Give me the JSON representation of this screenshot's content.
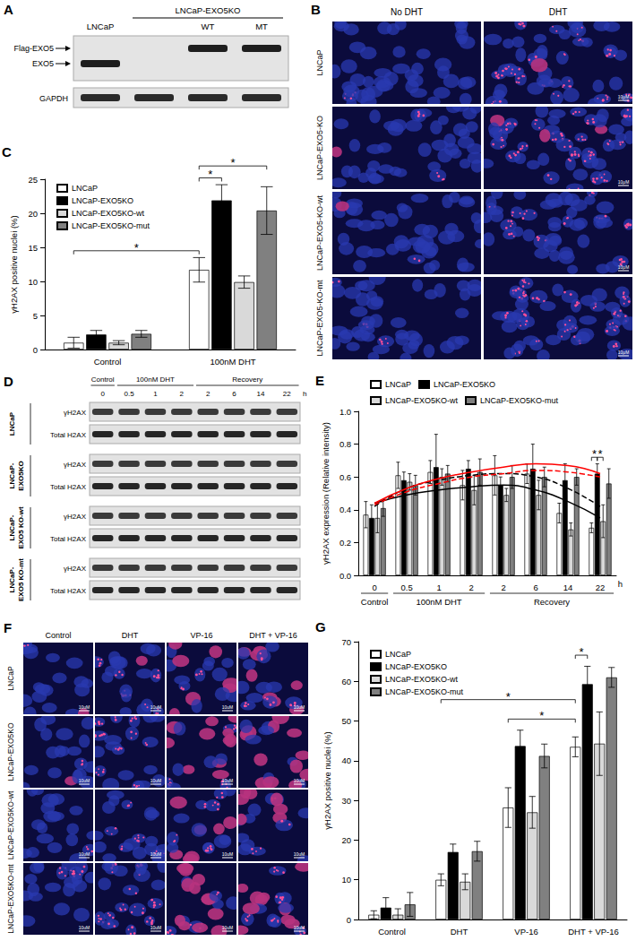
{
  "panels": {
    "A": {
      "label": "A",
      "lanes": [
        "LNCaP",
        null,
        "WT",
        "MT"
      ],
      "group": "LNCaP-EXO5KO",
      "bands": [
        {
          "label": "Flag-EXO5",
          "present": [
            false,
            false,
            true,
            true
          ]
        },
        {
          "label": "EXO5",
          "present": [
            true,
            false,
            false,
            false
          ]
        }
      ],
      "loading_control": "GAPDH"
    },
    "B": {
      "label": "B",
      "columns": [
        "No DHT",
        "DHT"
      ],
      "rows": [
        "LNCaP",
        "LNCaP-EXO5-KO",
        "LNCaP-EXO5-KO-wt",
        "LNCaP-EXO5-KO-mt"
      ],
      "scale_bar": "10μM"
    },
    "D": {
      "label": "D",
      "groups": [
        {
          "label": "Control",
          "times": [
            "0"
          ]
        },
        {
          "label": "100nM DHT",
          "times": [
            "0.5",
            "1",
            "2"
          ]
        },
        {
          "label": "Recovery",
          "times": [
            "2",
            "6",
            "14",
            "22"
          ]
        }
      ],
      "time_unit": "h",
      "cell_lines": [
        "LNCaP",
        "LNCaP-EXO5KO",
        "LNCaP-EXO5 KO-wt",
        "LNCaP-EXO5 KO-mt"
      ],
      "bands": [
        "γH2AX",
        "Total H2AX"
      ]
    },
    "F": {
      "label": "F",
      "columns": [
        "Control",
        "DHT",
        "VP-16",
        "DHT + VP-16"
      ],
      "rows": [
        "LNCaP",
        "LNCaP-EXO5KO",
        "LNCaP-EXO5KO-wt",
        "LNCaP-EXO5KO-mt"
      ],
      "scale_bar": "10uM"
    }
  },
  "chart_data": [
    {
      "panel": "C",
      "type": "bar",
      "y_label": "γH2AX positive nuclei (%)",
      "categories": [
        "Control",
        "100nM DHT"
      ],
      "series": [
        {
          "name": "LNCaP",
          "color": "#ffffff",
          "values": [
            1.0,
            11.7
          ],
          "errors": [
            0.8,
            1.8
          ]
        },
        {
          "name": "LNCaP-EXO5KO",
          "color": "#000000",
          "values": [
            2.2,
            21.9
          ],
          "errors": [
            0.6,
            2.3
          ]
        },
        {
          "name": "LNCaP-EXO5KO-wt",
          "color": "#d9d9d9",
          "values": [
            1.0,
            9.9
          ],
          "errors": [
            0.3,
            0.9
          ]
        },
        {
          "name": "LNCaP-EXO5KO-mut",
          "color": "#808080",
          "values": [
            2.3,
            20.4
          ],
          "errors": [
            0.5,
            3.5
          ]
        }
      ],
      "ylim": [
        0,
        25
      ],
      "yticks": [
        0,
        5,
        10,
        15,
        20,
        25
      ],
      "grid": false,
      "legend": "upper left",
      "annotations": [
        {
          "label": "*",
          "from": {
            "series": "LNCaP",
            "category": "Control"
          },
          "to": {
            "series": "LNCaP",
            "category": "100nM DHT"
          }
        },
        {
          "label": "*",
          "from": {
            "series": "LNCaP",
            "category": "100nM DHT"
          },
          "to": {
            "series": "LNCaP-EXO5KO",
            "category": "100nM DHT"
          }
        },
        {
          "label": "*",
          "from": {
            "series": "LNCaP",
            "category": "100nM DHT"
          },
          "to": {
            "series": "LNCaP-EXO5KO-mut",
            "category": "100nM DHT"
          }
        }
      ]
    },
    {
      "panel": "E",
      "type": "bar",
      "y_label": "γH2AX expression (Relative intensity)",
      "x_label": "h",
      "category_groups": [
        {
          "label": "Control",
          "categories": [
            "0"
          ]
        },
        {
          "label": "100nM DHT",
          "categories": [
            "0.5",
            "1",
            "2"
          ]
        },
        {
          "label": "Recovery",
          "categories": [
            "2",
            "6",
            "14",
            "22"
          ]
        }
      ],
      "series": [
        {
          "name": "LNCaP",
          "color": "#ffffff",
          "values": [
            0.37,
            0.61,
            0.63,
            0.55,
            0.61,
            0.62,
            0.38,
            0.29
          ],
          "errors": [
            0.08,
            0.08,
            0.07,
            0.09,
            0.12,
            0.06,
            0.06,
            0.03
          ]
        },
        {
          "name": "LNCaP-EXO5KO",
          "color": "#000000",
          "values": [
            0.35,
            0.58,
            0.66,
            0.65,
            0.55,
            0.65,
            0.58,
            0.62
          ],
          "errors": [
            0.08,
            0.05,
            0.2,
            0.05,
            0.05,
            0.15,
            0.1,
            0.06
          ]
        },
        {
          "name": "LNCaP-EXO5KO-wt",
          "color": "#d9d9d9",
          "values": [
            0.35,
            0.57,
            0.6,
            0.52,
            0.49,
            0.49,
            0.28,
            0.33
          ],
          "errors": [
            0.09,
            0.05,
            0.05,
            0.09,
            0.04,
            0.09,
            0.04,
            0.1
          ]
        },
        {
          "name": "LNCaP-EXO5KO-mut",
          "color": "#808080",
          "values": [
            0.41,
            0.55,
            0.62,
            0.63,
            0.6,
            0.6,
            0.6,
            0.56
          ],
          "errors": [
            0.05,
            0.06,
            0.05,
            0.08,
            0.07,
            0.06,
            0.05,
            0.09
          ]
        }
      ],
      "trend_lines": [
        {
          "type": "line",
          "color": "#000000",
          "line_style": "solid",
          "values": [
            0.44,
            0.49,
            0.52,
            0.54,
            0.55,
            0.52,
            0.45,
            0.35
          ]
        },
        {
          "type": "line",
          "color": "#000000",
          "line_style": "dashed",
          "values": [
            0.42,
            0.53,
            0.58,
            0.61,
            0.62,
            0.6,
            0.53,
            0.42
          ]
        },
        {
          "type": "line",
          "color": "#ff0000",
          "line_style": "solid",
          "values": [
            0.44,
            0.53,
            0.59,
            0.63,
            0.66,
            0.68,
            0.67,
            0.62
          ]
        },
        {
          "type": "line",
          "color": "#ff0000",
          "line_style": "dashed",
          "values": [
            0.43,
            0.51,
            0.56,
            0.6,
            0.62,
            0.64,
            0.63,
            0.6
          ]
        }
      ],
      "ylim": [
        0,
        1
      ],
      "yticks": [
        {
          "value": 0,
          "label": "0.0"
        },
        0.2,
        0.4,
        0.6,
        0.8,
        {
          "value": 1,
          "label": "1.0"
        }
      ],
      "grid": false,
      "legend": "upper left",
      "annotations": [
        {
          "label": "*",
          "from": {
            "series": "LNCaP",
            "category": "22"
          },
          "to": {
            "series": "LNCaP-EXO5KO",
            "category": "22"
          }
        },
        {
          "label": "*",
          "from": {
            "series": "LNCaP-EXO5KO",
            "category": "22"
          },
          "to": {
            "series": "LNCaP-EXO5KO-wt",
            "category": "22"
          }
        }
      ]
    },
    {
      "panel": "G",
      "type": "bar",
      "y_label": "γH2AX positive nuclei (%)",
      "categories": [
        "Control",
        "DHT",
        "VP-16",
        "DHT + VP-16"
      ],
      "series": [
        {
          "name": "LNCaP",
          "color": "#ffffff",
          "values": [
            1.2,
            10.0,
            28.2,
            43.5
          ],
          "errors": [
            1.0,
            1.5,
            5.0,
            2.5
          ]
        },
        {
          "name": "LNCaP-EXO5KO",
          "color": "#000000",
          "values": [
            3.0,
            17.0,
            43.7,
            59.3
          ],
          "errors": [
            2.5,
            2.0,
            4.0,
            4.5
          ]
        },
        {
          "name": "LNCaP-EXO5KO-wt",
          "color": "#d9d9d9",
          "values": [
            1.2,
            9.5,
            27.0,
            44.3
          ],
          "errors": [
            1.5,
            2.0,
            4.0,
            8.0
          ]
        },
        {
          "name": "LNCaP-EXO5KO-mut",
          "color": "#808080",
          "values": [
            3.8,
            17.2,
            41.2,
            61.0
          ],
          "errors": [
            3.0,
            2.5,
            3.0,
            2.5
          ]
        }
      ],
      "ylim": [
        0,
        70
      ],
      "yticks": [
        0,
        10,
        20,
        30,
        40,
        50,
        60,
        70
      ],
      "grid": false,
      "legend": "upper left",
      "annotations": [
        {
          "label": "*",
          "from": {
            "series": "LNCaP",
            "category": "VP-16"
          },
          "to": {
            "series": "LNCaP",
            "category": "DHT + VP-16"
          }
        },
        {
          "label": "*",
          "from": {
            "series": "LNCaP",
            "category": "DHT"
          },
          "to": {
            "series": "LNCaP",
            "category": "DHT + VP-16"
          }
        },
        {
          "label": "*",
          "from": {
            "series": "LNCaP",
            "category": "DHT + VP-16"
          },
          "to": {
            "series": "LNCaP-EXO5KO",
            "category": "DHT + VP-16"
          }
        }
      ]
    }
  ]
}
